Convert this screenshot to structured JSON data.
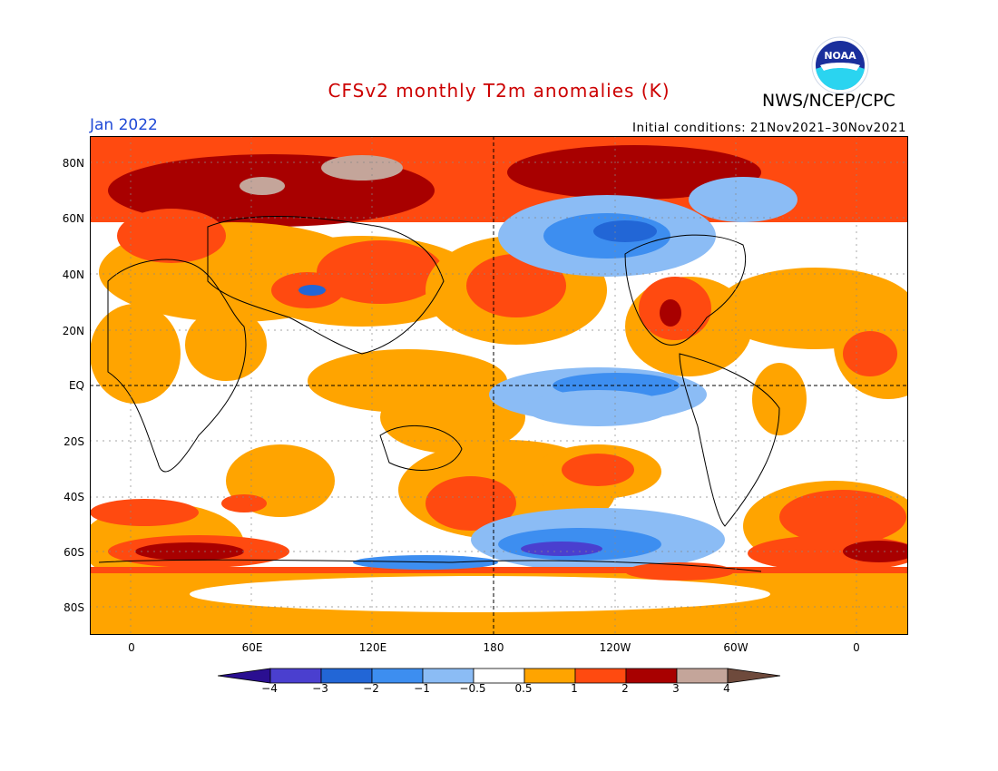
{
  "header": {
    "title": "CFSv2 monthly T2m anomalies (K)",
    "agency": "NWS/NCEP/CPC",
    "valid_month": "Jan 2022",
    "initial_conditions": "Initial conditions: 21Nov2021–30Nov2021",
    "logo_text": "NOAA"
  },
  "colors": {
    "title": "#cc0000",
    "month": "#1f49d6",
    "scale": [
      "#2a0f91",
      "#4a3fcf",
      "#2266d6",
      "#3d8ef0",
      "#8bbcf5",
      "#ffffff",
      "#ffa400",
      "#ff4a10",
      "#a80000",
      "#c4a59a",
      "#6e4a3c"
    ]
  },
  "map": {
    "lat_labels": [
      "80N",
      "60N",
      "40N",
      "20N",
      "EQ",
      "20S",
      "40S",
      "60S",
      "80S"
    ],
    "lon_labels": [
      "0",
      "60E",
      "120E",
      "180",
      "120W",
      "60W",
      "0"
    ]
  },
  "colorbar": {
    "labels": [
      "−4",
      "−3",
      "−2",
      "−1",
      "−0.5",
      "0.5",
      "1",
      "2",
      "3",
      "4"
    ]
  }
}
